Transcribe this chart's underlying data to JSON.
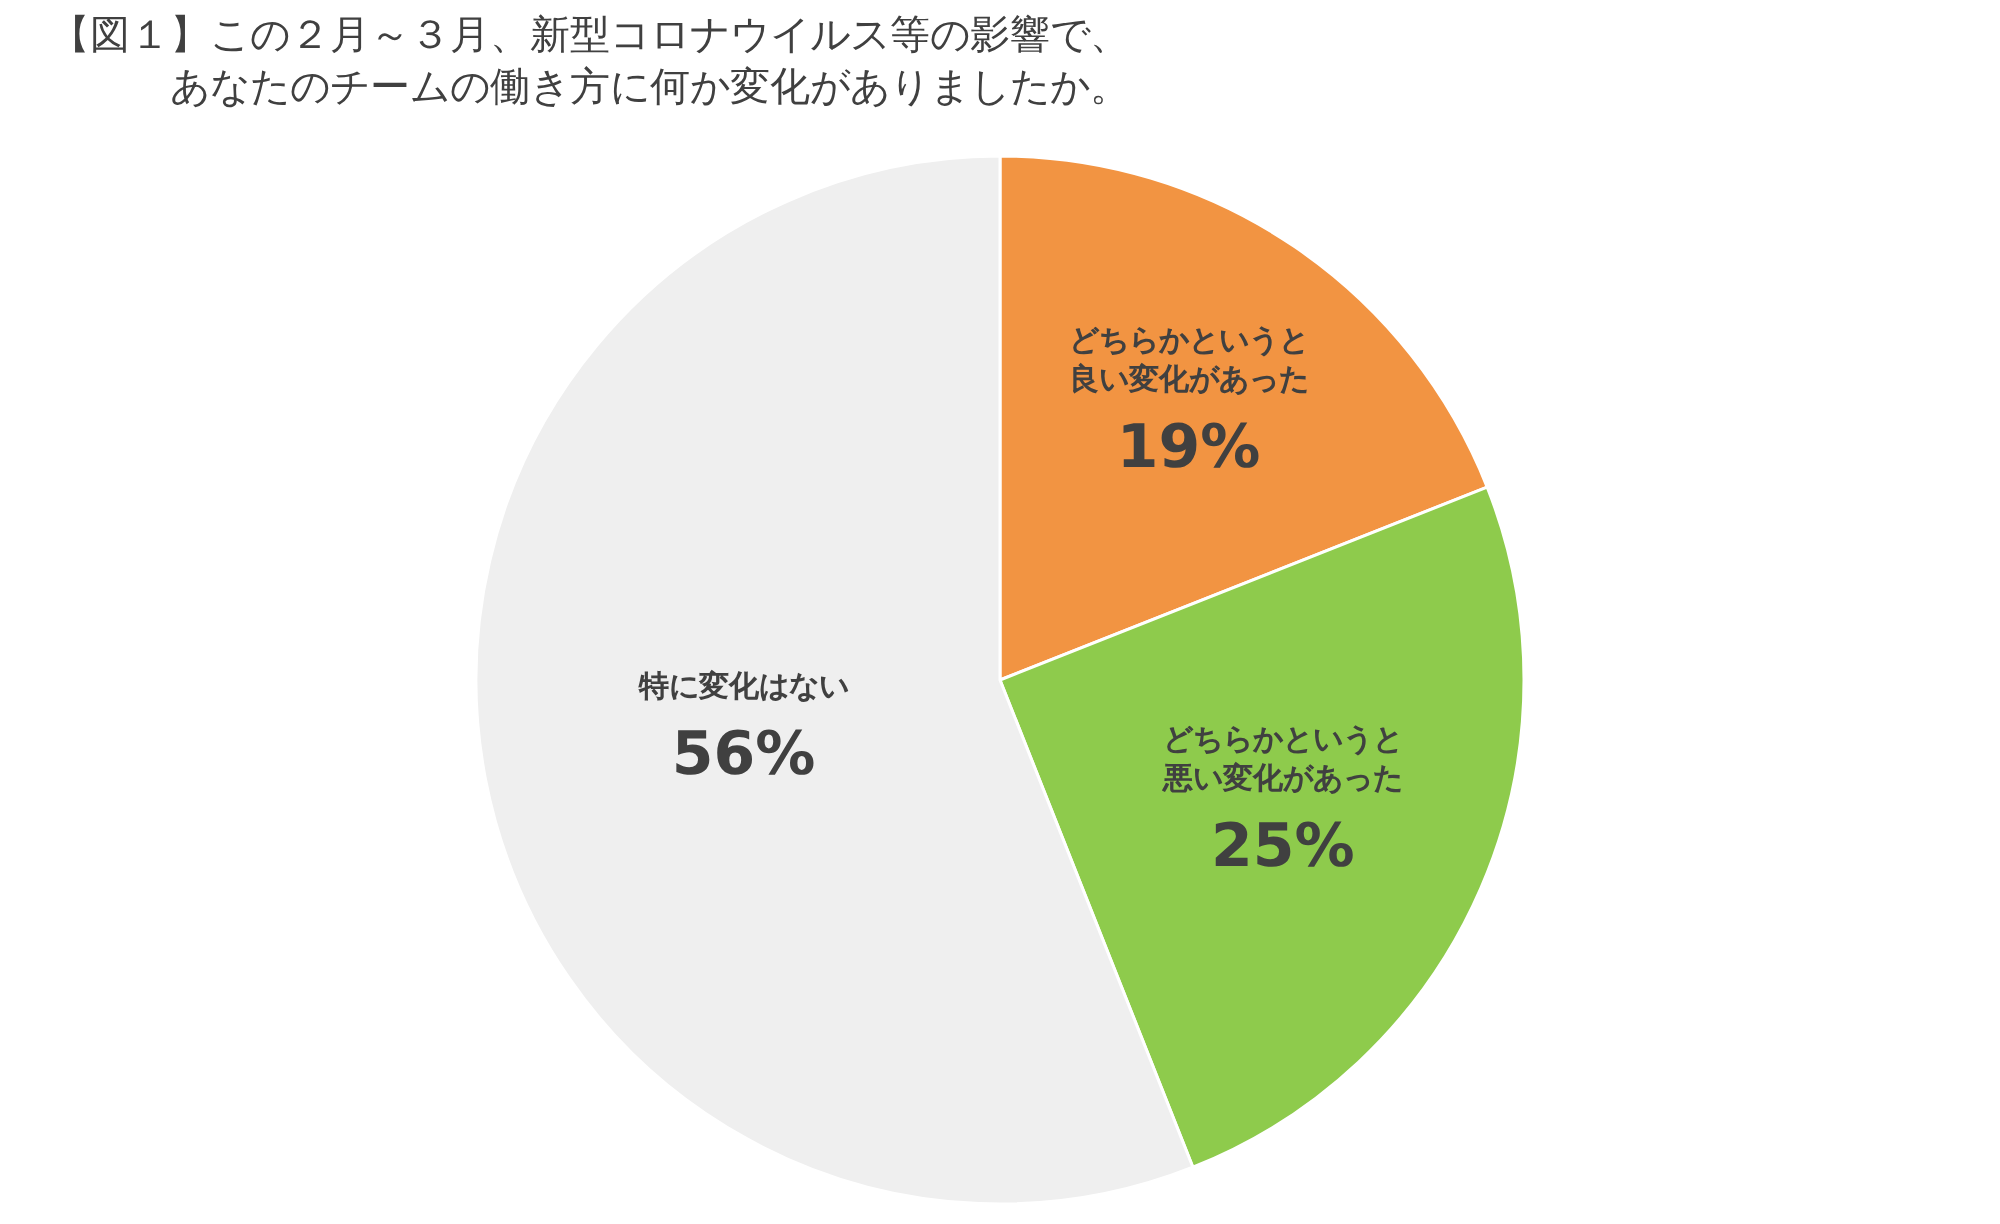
{
  "chart_data": {
    "type": "pie",
    "title": "【図１】この２月～３月、新型コロナウイルス等の影響で、あなたのチームの働き方に何か変化がありましたか。",
    "categories": [
      "どちらかというと良い変化があった",
      "どちらかというと悪い変化があった",
      "特に変化はない"
    ],
    "values": [
      19,
      25,
      56
    ],
    "colors": [
      "#f29442",
      "#8ecb4c",
      "#efefef"
    ],
    "value_labels": [
      "19%",
      "25%",
      "56%"
    ],
    "legend": false
  }
}
